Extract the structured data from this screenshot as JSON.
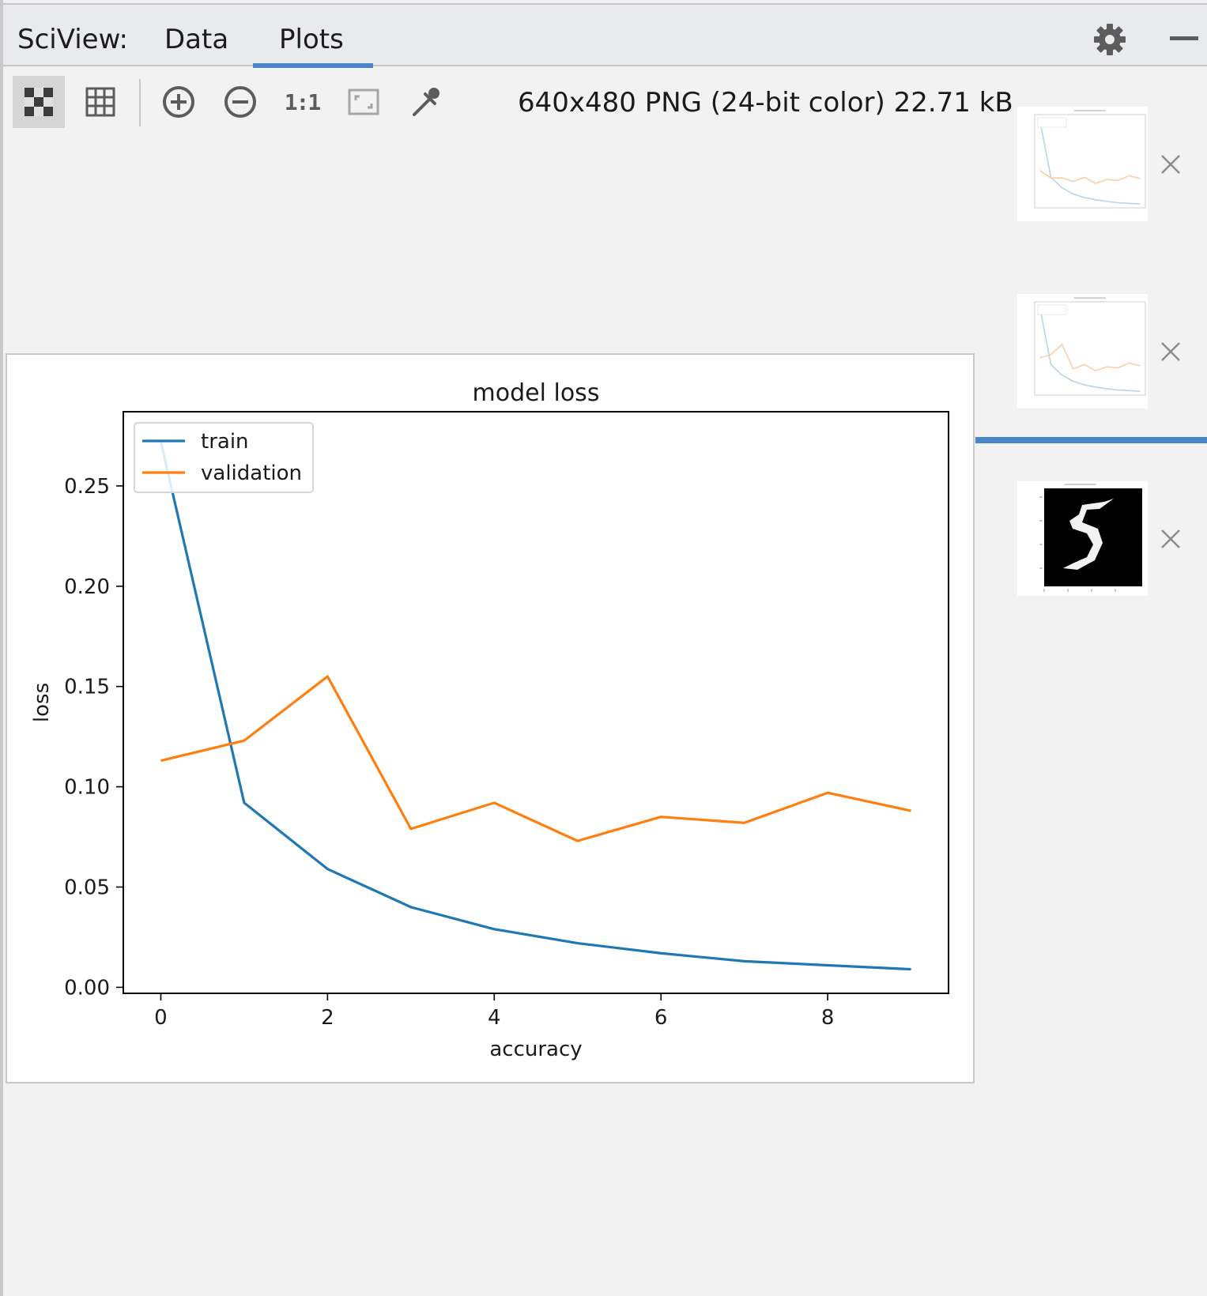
{
  "header": {
    "title": "SciView:",
    "tabs": [
      {
        "label": "Data",
        "active": false
      },
      {
        "label": "Plots",
        "active": true
      }
    ],
    "accent_color": "#4a86c8"
  },
  "toolbar": {
    "buttons": [
      {
        "name": "chessboard-icon",
        "active": true
      },
      {
        "name": "grid-icon",
        "active": false
      },
      {
        "name": "zoom-in-icon",
        "active": false
      },
      {
        "name": "zoom-out-icon",
        "active": false
      },
      {
        "name": "actual-size-icon",
        "label": "1:1",
        "active": false
      },
      {
        "name": "fit-window-icon",
        "active": false
      },
      {
        "name": "color-picker-icon",
        "active": false
      }
    ],
    "image_info": "640x480 PNG (24-bit color) 22.71 kB"
  },
  "chart_data": {
    "type": "line",
    "title": "model loss",
    "xlabel": "accuracy",
    "ylabel": "loss",
    "x": [
      0,
      1,
      2,
      3,
      4,
      5,
      6,
      7,
      8,
      9
    ],
    "xticks": [
      "0",
      "2",
      "4",
      "6",
      "8"
    ],
    "yticks": [
      "0.00",
      "0.05",
      "0.10",
      "0.15",
      "0.20",
      "0.25"
    ],
    "xlim": [
      -0.45,
      9.45
    ],
    "ylim": [
      -0.003,
      0.287
    ],
    "grid": false,
    "legend_position": "upper left",
    "series": [
      {
        "name": "train",
        "color": "#1f77b4",
        "values": [
          0.272,
          0.092,
          0.059,
          0.04,
          0.029,
          0.022,
          0.017,
          0.013,
          0.011,
          0.009
        ]
      },
      {
        "name": "validation",
        "color": "#ff7f0e",
        "values": [
          0.113,
          0.123,
          0.155,
          0.079,
          0.092,
          0.073,
          0.085,
          0.082,
          0.097,
          0.088
        ]
      }
    ]
  },
  "thumbnails": [
    {
      "name": "thumbnail-model-loss-1",
      "kind": "loss-plot",
      "selected": false
    },
    {
      "name": "thumbnail-model-loss-2",
      "kind": "loss-plot",
      "selected": true
    },
    {
      "name": "thumbnail-digit-image",
      "kind": "digit-image",
      "digit": "5",
      "selected": false
    }
  ]
}
